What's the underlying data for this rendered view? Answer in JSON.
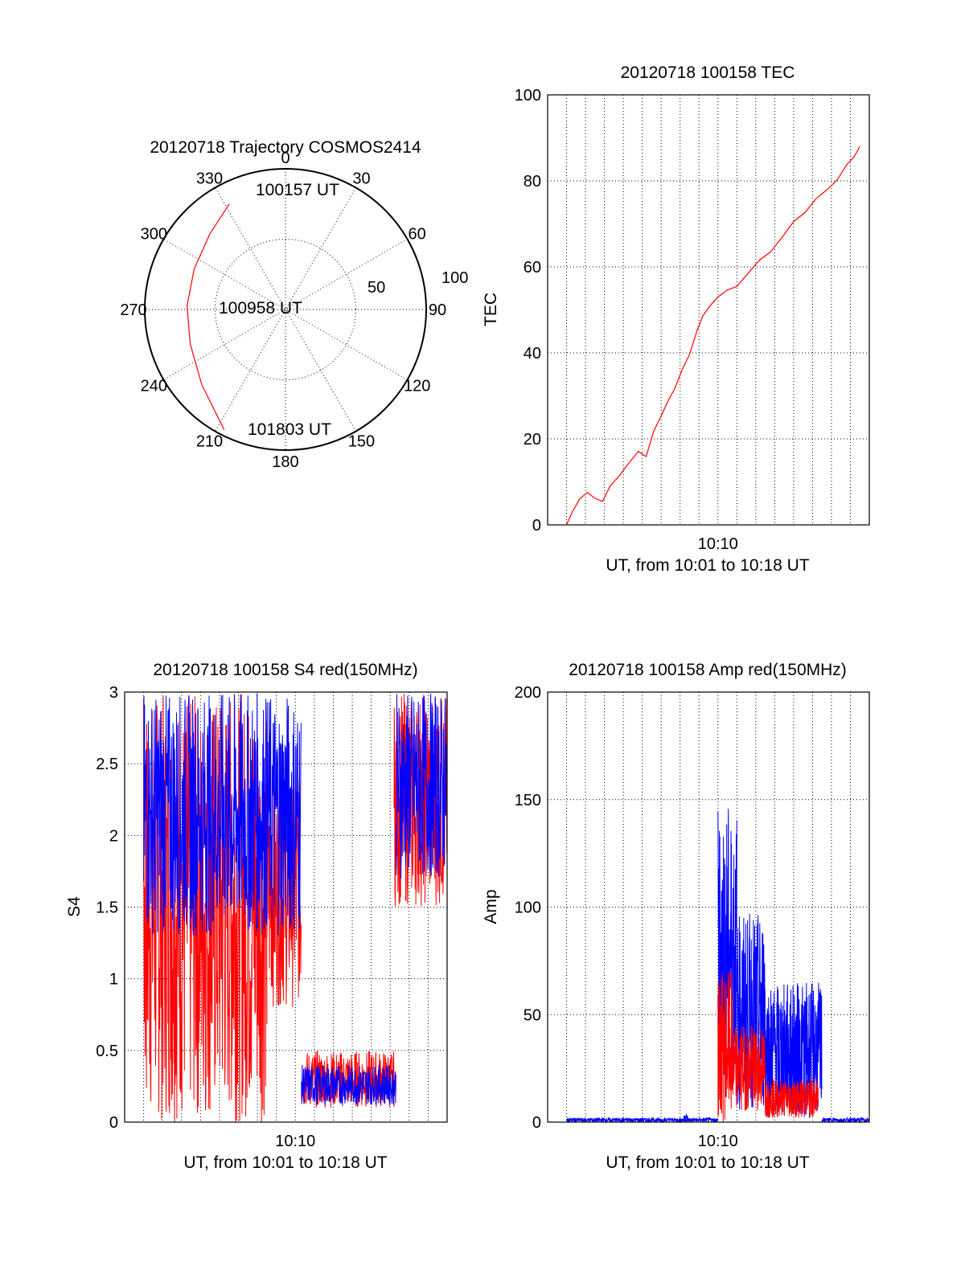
{
  "chart_data": [
    {
      "id": "trajectory",
      "type": "scatter",
      "subtype": "polar",
      "title": "20120718 Trajectory COSMOS2414",
      "azimuth_ticks": [
        "0",
        "30",
        "60",
        "90",
        "120",
        "150",
        "180",
        "210",
        "240",
        "270",
        "300",
        "330"
      ],
      "radial_ticks": [
        "50",
        "100"
      ],
      "elevation_range": [
        0,
        100
      ],
      "points_label": [
        "100157 UT",
        "100958 UT",
        "101803 UT"
      ],
      "series": [
        {
          "color": "#ff0000",
          "points": [
            {
              "az": 332,
              "r": 85
            },
            {
              "az": 315,
              "r": 76
            },
            {
              "az": 294,
              "r": 71
            },
            {
              "az": 272,
              "r": 70
            },
            {
              "az": 250,
              "r": 72
            },
            {
              "az": 228,
              "r": 80
            },
            {
              "az": 207,
              "r": 96
            }
          ]
        }
      ],
      "grid": true
    },
    {
      "id": "tec",
      "type": "line",
      "title": "20120718 100158 TEC",
      "xlabel": "UT, from 10:01 to 10:18 UT",
      "ylabel": "TEC",
      "x_tick_label": "10:10",
      "x_tick_minute": 10,
      "xlim": [
        1,
        18
      ],
      "ylim": [
        0,
        100
      ],
      "yticks": [
        "0",
        "20",
        "40",
        "60",
        "80",
        "100"
      ],
      "grid": true,
      "series": [
        {
          "color": "#ff0000",
          "points": [
            [
              2,
              0
            ],
            [
              2.3,
              3
            ],
            [
              2.7,
              6
            ],
            [
              3.1,
              8
            ],
            [
              3.5,
              6.5
            ],
            [
              3.9,
              5.5
            ],
            [
              4.3,
              9
            ],
            [
              4.8,
              12
            ],
            [
              5.3,
              14
            ],
            [
              5.8,
              17
            ],
            [
              6.2,
              16
            ],
            [
              6.6,
              22
            ],
            [
              7.0,
              25
            ],
            [
              7.4,
              29
            ],
            [
              7.7,
              32
            ],
            [
              8.1,
              36
            ],
            [
              8.5,
              40
            ],
            [
              8.9,
              45
            ],
            [
              9.2,
              49
            ],
            [
              9.6,
              51
            ],
            [
              10.0,
              53
            ],
            [
              10.5,
              55
            ],
            [
              11.0,
              56
            ],
            [
              11.6,
              58
            ],
            [
              12.2,
              61
            ],
            [
              12.8,
              64
            ],
            [
              13.4,
              67
            ],
            [
              14.0,
              70
            ],
            [
              14.6,
              73
            ],
            [
              15.2,
              76
            ],
            [
              15.8,
              78
            ],
            [
              16.3,
              80
            ],
            [
              16.8,
              84
            ],
            [
              17.2,
              86
            ],
            [
              17.5,
              88
            ]
          ]
        }
      ]
    },
    {
      "id": "s4",
      "type": "line",
      "title": "20120718 100158 S4 red(150MHz)",
      "xlabel": "UT, from 10:01 to 10:18 UT",
      "ylabel": "S4",
      "x_tick_label": "10:10",
      "x_tick_minute": 10,
      "xlim": [
        1,
        18
      ],
      "ylim": [
        0,
        3
      ],
      "yticks": [
        "0",
        "0.5",
        "1",
        "1.5",
        "2",
        "2.5",
        "3"
      ],
      "grid": true,
      "series": [
        {
          "color": "#ff0000",
          "segments": [
            {
              "x": [
                2,
                8.5
              ],
              "min": 0,
              "max": 3,
              "noisy": true
            },
            {
              "x": [
                8.5,
                10.3
              ],
              "min": 0.8,
              "max": 2.4,
              "noisy": true
            },
            {
              "x": [
                10.3,
                15.2
              ],
              "min": 0.1,
              "max": 0.5,
              "noisy": true
            },
            {
              "x": [
                15.2,
                18
              ],
              "min": 1.5,
              "max": 3,
              "noisy": true
            }
          ]
        },
        {
          "color": "#0000ff",
          "segments": [
            {
              "x": [
                2,
                10.3
              ],
              "min": 1.3,
              "max": 3,
              "noisy": true
            },
            {
              "x": [
                10.3,
                15.3
              ],
              "min": 0.12,
              "max": 0.4,
              "noisy": true
            },
            {
              "x": [
                15.3,
                18
              ],
              "min": 1.7,
              "max": 3,
              "noisy": true
            }
          ]
        }
      ]
    },
    {
      "id": "amp",
      "type": "line",
      "title": "20120718 100158 Amp red(150MHz)",
      "xlabel": "UT, from 10:01 to 10:18 UT",
      "ylabel": "Amp",
      "x_tick_label": "10:10",
      "x_tick_minute": 10,
      "xlim": [
        1,
        18
      ],
      "ylim": [
        0,
        200
      ],
      "yticks": [
        "0",
        "50",
        "100",
        "150",
        "200"
      ],
      "grid": true,
      "series": [
        {
          "color": "#ff0000",
          "segments": [
            {
              "x": [
                10.0,
                10.8
              ],
              "min": 0,
              "max": 70,
              "noisy": true
            },
            {
              "x": [
                10.8,
                12.5
              ],
              "min": 5,
              "max": 45,
              "noisy": true
            },
            {
              "x": [
                12.5,
                15.3
              ],
              "min": 2,
              "max": 20,
              "noisy": true
            }
          ]
        },
        {
          "color": "#0000ff",
          "segments": [
            {
              "x": [
                2,
                10.0
              ],
              "min": 0,
              "max": 2,
              "noisy": true
            },
            {
              "x": [
                8.2,
                8.4
              ],
              "min": 0,
              "max": 4,
              "noisy": true
            },
            {
              "x": [
                10.0,
                11.0
              ],
              "min": 10,
              "max": 148,
              "noisy": true
            },
            {
              "x": [
                11.0,
                12.5
              ],
              "min": 5,
              "max": 97,
              "noisy": true
            },
            {
              "x": [
                12.5,
                15.5
              ],
              "min": 2,
              "max": 65,
              "noisy": true
            },
            {
              "x": [
                15.5,
                18
              ],
              "min": 0,
              "max": 2,
              "noisy": true
            }
          ]
        }
      ]
    }
  ]
}
